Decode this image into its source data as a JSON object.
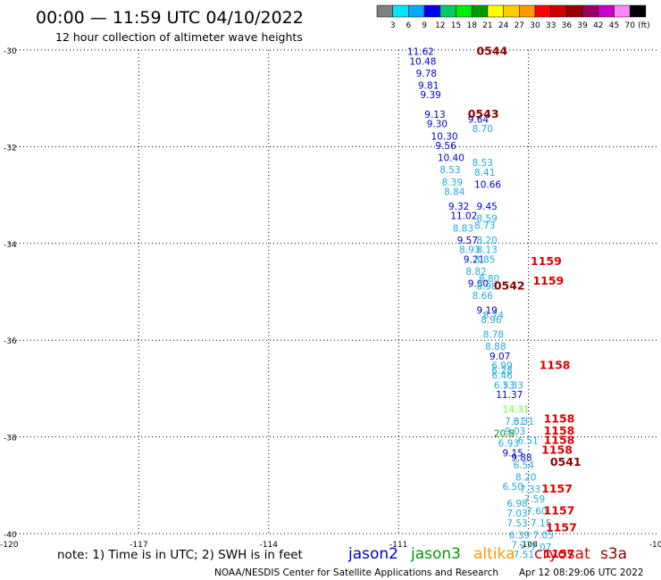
{
  "title": "00:00 — 11:59 UTC 04/10/2022",
  "subtitle": "12 hour collection of altimeter wave heights",
  "footer": {
    "note": "note:  1) Time is in UTC;  2) SWH is in feet",
    "credit": "NOAA/NESDIS Center for Satellite Applications and Research",
    "timestamp": "Apr 12 08:29:06 UTC 2022"
  },
  "colors": {
    "jason2": "#0000cc",
    "jason3": "#009900",
    "altika": "#ff9900",
    "cryosat": "#dd0000",
    "s3a": "#8b0000",
    "light": "#22aadd",
    "green_light": "#66ff33",
    "grid": "#000000"
  },
  "color_scale": {
    "labels": [
      "3",
      "6",
      "9",
      "12",
      "15",
      "18",
      "21",
      "24",
      "27",
      "30",
      "33",
      "36",
      "39",
      "42",
      "45",
      "70"
    ],
    "unit": "(ft)",
    "colors": [
      "#808080",
      "#00e5ff",
      "#00aaff",
      "#0000ee",
      "#00cc66",
      "#00ee00",
      "#009900",
      "#ffff00",
      "#ffcc00",
      "#ff9900",
      "#ff0000",
      "#cc0000",
      "#990000",
      "#990066",
      "#cc00cc",
      "#ff88ff",
      "#000000"
    ]
  },
  "chart_data": {
    "type": "scatter",
    "x_ticks": [
      "-117",
      "-114",
      "-111",
      "-108",
      "-105"
    ],
    "y_ticks": [
      "-30",
      "-32",
      "-34",
      "-36",
      "-38",
      "-40"
    ],
    "corner_label": "-120",
    "xlim": [
      -120,
      -105
    ],
    "ylim": [
      -40,
      -30
    ],
    "grid": true,
    "legend": {
      "placement": "bottom-right",
      "entries": [
        {
          "name": "jason2",
          "color": "#0000cc"
        },
        {
          "name": "jason3",
          "color": "#009900"
        },
        {
          "name": "altika",
          "color": "#ff9900"
        },
        {
          "name": "cryosat",
          "color": "#dd0000"
        },
        {
          "name": "s3a",
          "color": "#8b0000"
        }
      ]
    },
    "points": [
      {
        "x": -110.8,
        "y": -30.1,
        "label": "11.62",
        "color": "#0000cc"
      },
      {
        "x": -110.75,
        "y": -30.3,
        "label": "10.48",
        "color": "#0000cc"
      },
      {
        "x": -110.6,
        "y": -30.55,
        "label": "9.78",
        "color": "#0000cc"
      },
      {
        "x": -110.55,
        "y": -30.8,
        "label": "9.81",
        "color": "#0000cc"
      },
      {
        "x": -110.5,
        "y": -31.0,
        "label": "9.39",
        "color": "#0000cc"
      },
      {
        "x": -110.4,
        "y": -31.4,
        "label": "9.13",
        "color": "#0000cc"
      },
      {
        "x": -110.35,
        "y": -31.6,
        "label": "9.30",
        "color": "#0000cc"
      },
      {
        "x": -110.25,
        "y": -31.85,
        "label": "10.30",
        "color": "#0000cc"
      },
      {
        "x": -110.15,
        "y": -32.05,
        "label": "9.56",
        "color": "#0000cc"
      },
      {
        "x": -110.1,
        "y": -32.3,
        "label": "10.40",
        "color": "#0000cc"
      },
      {
        "x": -110.05,
        "y": -32.55,
        "label": "8.53",
        "color": "#22aadd"
      },
      {
        "x": -110.0,
        "y": -32.8,
        "label": "8.39",
        "color": "#22aadd"
      },
      {
        "x": -109.95,
        "y": -33.0,
        "label": "8.84",
        "color": "#22aadd"
      },
      {
        "x": -109.85,
        "y": -33.3,
        "label": "9.32",
        "color": "#0000cc"
      },
      {
        "x": -109.8,
        "y": -33.5,
        "label": "11.02",
        "color": "#0000cc"
      },
      {
        "x": -109.75,
        "y": -33.75,
        "label": "8.83",
        "color": "#22aadd"
      },
      {
        "x": -109.65,
        "y": -34.0,
        "label": "9.57",
        "color": "#0000cc"
      },
      {
        "x": -109.6,
        "y": -34.2,
        "label": "8.93",
        "color": "#22aadd"
      },
      {
        "x": -109.5,
        "y": -34.4,
        "label": "9.21",
        "color": "#0000cc"
      },
      {
        "x": -109.45,
        "y": -34.65,
        "label": "8.82",
        "color": "#22aadd"
      },
      {
        "x": -109.4,
        "y": -34.9,
        "label": "9.60",
        "color": "#0000cc"
      },
      {
        "x": -109.3,
        "y": -35.15,
        "label": "8.66",
        "color": "#22aadd"
      },
      {
        "x": -109.2,
        "y": -35.45,
        "label": "9.19",
        "color": "#0000cc"
      },
      {
        "x": -109.1,
        "y": -35.65,
        "label": "8.96",
        "color": "#22aadd"
      },
      {
        "x": -109.05,
        "y": -35.95,
        "label": "8.78",
        "color": "#22aadd"
      },
      {
        "x": -109.0,
        "y": -36.2,
        "label": "8.88",
        "color": "#22aadd"
      },
      {
        "x": -108.9,
        "y": -36.4,
        "label": "9.07",
        "color": "#0000cc"
      },
      {
        "x": -108.85,
        "y": -36.6,
        "label": "6.99",
        "color": "#22aadd"
      },
      {
        "x": -108.85,
        "y": -36.8,
        "label": "6.46",
        "color": "#22aadd"
      },
      {
        "x": -108.8,
        "y": -37.0,
        "label": "6.53",
        "color": "#22aadd"
      },
      {
        "x": -108.75,
        "y": -37.2,
        "label": "11.37",
        "color": "#0000cc"
      },
      {
        "x": -108.6,
        "y": -37.5,
        "label": "14.31",
        "color": "#66ff33"
      },
      {
        "x": -108.55,
        "y": -37.75,
        "label": "7.31",
        "color": "#22aadd"
      },
      {
        "x": -108.55,
        "y": -37.95,
        "label": "9.03",
        "color": "#22aadd"
      },
      {
        "x": -108.8,
        "y": -38.0,
        "label": "20.8",
        "color": "#009900"
      },
      {
        "x": -108.7,
        "y": -38.2,
        "label": "6.93",
        "color": "#22aadd"
      },
      {
        "x": -108.6,
        "y": -38.4,
        "label": "9.15",
        "color": "#0000cc"
      },
      {
        "x": -108.4,
        "y": -38.5,
        "label": "9.88",
        "color": "#0000cc"
      },
      {
        "x": -108.35,
        "y": -38.65,
        "label": "6.54",
        "color": "#22aadd"
      },
      {
        "x": -108.3,
        "y": -38.9,
        "label": "8.20",
        "color": "#22aadd"
      },
      {
        "x": -108.6,
        "y": -39.1,
        "label": "6.50",
        "color": "#22aadd"
      },
      {
        "x": -108.2,
        "y": -39.15,
        "label": "7.33",
        "color": "#22aadd"
      },
      {
        "x": -108.1,
        "y": -39.35,
        "label": "7.59",
        "color": "#22aadd"
      },
      {
        "x": -108.5,
        "y": -39.45,
        "label": "6.98",
        "color": "#22aadd"
      },
      {
        "x": -108.5,
        "y": -39.65,
        "label": "7.03",
        "color": "#22aadd"
      },
      {
        "x": -108.05,
        "y": -39.6,
        "label": "7.60",
        "color": "#22aadd"
      },
      {
        "x": -108.5,
        "y": -39.85,
        "label": "7.53",
        "color": "#22aadd"
      },
      {
        "x": -107.95,
        "y": -39.85,
        "label": "7.15",
        "color": "#22aadd"
      },
      {
        "x": -108.45,
        "y": -40.1,
        "label": "6.39",
        "color": "#22aadd"
      },
      {
        "x": -107.9,
        "y": -40.1,
        "label": "7.05",
        "color": "#22aadd"
      },
      {
        "x": -108.4,
        "y": -40.3,
        "label": "7.27",
        "color": "#22aadd"
      },
      {
        "x": -107.95,
        "y": -40.35,
        "label": "7.07",
        "color": "#22aadd"
      },
      {
        "x": -108.35,
        "y": -40.5,
        "label": "7.51",
        "color": "#22aadd"
      },
      {
        "x": -109.3,
        "y": -31.7,
        "label": "8.70",
        "color": "#22aadd"
      },
      {
        "x": -109.3,
        "y": -32.4,
        "label": "8.53",
        "color": "#22aadd"
      },
      {
        "x": -109.25,
        "y": -32.6,
        "label": "8.41",
        "color": "#22aadd"
      },
      {
        "x": -109.25,
        "y": -32.85,
        "label": "10.66",
        "color": "#0000cc"
      },
      {
        "x": -109.2,
        "y": -33.3,
        "label": "9.45",
        "color": "#0000cc"
      },
      {
        "x": -109.2,
        "y": -33.55,
        "label": "8.59",
        "color": "#22aadd"
      },
      {
        "x": -109.25,
        "y": -33.7,
        "label": "8.73",
        "color": "#22aadd"
      },
      {
        "x": -109.2,
        "y": -34.0,
        "label": "8.20",
        "color": "#22aadd"
      },
      {
        "x": -109.2,
        "y": -34.2,
        "label": "8.13",
        "color": "#22aadd"
      },
      {
        "x": -109.25,
        "y": -34.4,
        "label": "8.85",
        "color": "#22aadd"
      },
      {
        "x": -109.15,
        "y": -34.8,
        "label": "8.80",
        "color": "#22aadd"
      },
      {
        "x": -109.2,
        "y": -34.95,
        "label": "8.98",
        "color": "#22aadd"
      },
      {
        "x": -109.05,
        "y": -35.55,
        "label": "8.74",
        "color": "#22aadd"
      },
      {
        "x": -108.85,
        "y": -36.7,
        "label": "6.28",
        "color": "#22aadd"
      },
      {
        "x": -108.6,
        "y": -37.0,
        "label": "7.33",
        "color": "#22aadd"
      },
      {
        "x": -108.35,
        "y": -37.75,
        "label": "6.31",
        "color": "#22aadd"
      },
      {
        "x": -108.25,
        "y": -38.15,
        "label": "6.51",
        "color": "#22aadd"
      }
    ],
    "pass_times": [
      {
        "x": -109.2,
        "y": -30.1,
        "label": "0544",
        "color": "#8b0000"
      },
      {
        "x": -109.4,
        "y": -31.4,
        "label": "0543",
        "color": "#8b0000"
      },
      {
        "x": -109.4,
        "y": -31.5,
        "label": "9.64",
        "color": "#0000cc"
      },
      {
        "x": -108.8,
        "y": -34.95,
        "label": "0542",
        "color": "#8b0000"
      },
      {
        "x": -107.95,
        "y": -34.45,
        "label": "1159",
        "color": "#dd0000"
      },
      {
        "x": -107.9,
        "y": -34.85,
        "label": "1159",
        "color": "#dd0000"
      },
      {
        "x": -107.75,
        "y": -36.6,
        "label": "1158",
        "color": "#dd0000"
      },
      {
        "x": -107.65,
        "y": -37.7,
        "label": "1158",
        "color": "#dd0000"
      },
      {
        "x": -107.65,
        "y": -37.95,
        "label": "1158",
        "color": "#dd0000"
      },
      {
        "x": -107.65,
        "y": -38.15,
        "label": "1158",
        "color": "#dd0000"
      },
      {
        "x": -107.7,
        "y": -38.35,
        "label": "1158",
        "color": "#dd0000"
      },
      {
        "x": -107.5,
        "y": -38.6,
        "label": "0541",
        "color": "#8b0000"
      },
      {
        "x": -107.7,
        "y": -39.15,
        "label": "1157",
        "color": "#dd0000"
      },
      {
        "x": -107.65,
        "y": -39.6,
        "label": "1157",
        "color": "#dd0000"
      },
      {
        "x": -107.6,
        "y": -39.95,
        "label": "1157",
        "color": "#dd0000"
      },
      {
        "x": -107.65,
        "y": -40.5,
        "label": "1157",
        "color": "#dd0000"
      }
    ]
  }
}
